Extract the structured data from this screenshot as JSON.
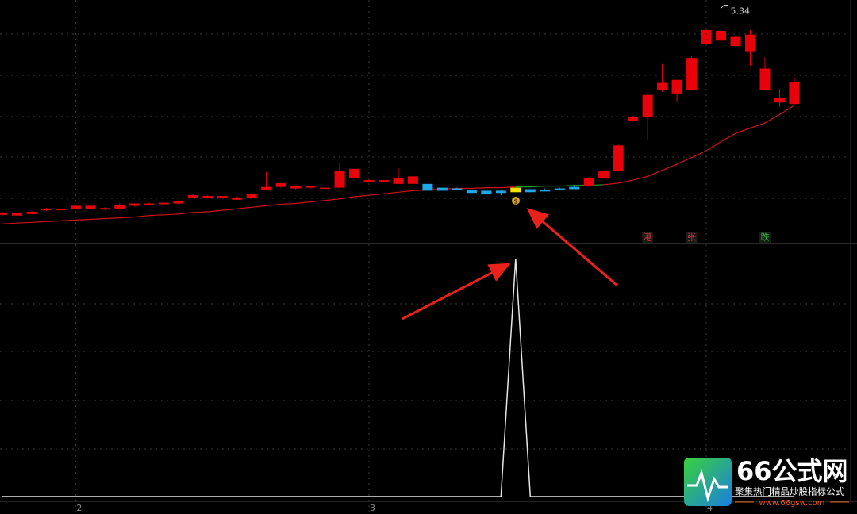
{
  "chart_data": [
    {
      "type": "candlestick",
      "open": [
        2.6,
        2.59,
        2.61,
        2.66,
        2.66,
        2.68,
        2.68,
        2.67,
        2.68,
        2.72,
        2.73,
        2.74,
        2.75,
        2.83,
        2.83,
        2.83,
        2.8,
        2.82,
        2.93,
        2.97,
        2.95,
        2.96,
        2.95,
        2.96,
        3.09,
        3.04,
        3.04,
        3.01,
        3.01,
        3.01,
        2.96,
        2.95,
        2.93,
        2.92,
        2.92,
        2.9,
        2.94,
        2.93,
        2.95,
        2.97,
        2.98,
        3.08,
        3.18,
        3.85,
        3.9,
        4.25,
        4.21,
        4.26,
        4.87,
        4.91,
        4.84,
        4.77,
        4.26,
        4.09,
        4.07
      ],
      "high": [
        2.64,
        2.64,
        2.65,
        2.69,
        2.68,
        2.73,
        2.72,
        2.7,
        2.75,
        2.75,
        2.76,
        2.76,
        2.79,
        2.88,
        2.86,
        2.85,
        2.84,
        2.89,
        3.17,
        3.02,
        2.98,
        2.98,
        2.98,
        3.29,
        3.21,
        3.09,
        3.06,
        3.22,
        3.11,
        3.01,
        2.96,
        2.96,
        2.93,
        2.92,
        2.93,
        2.96,
        2.94,
        2.95,
        2.96,
        2.98,
        3.1,
        3.18,
        3.53,
        3.91,
        4.2,
        4.6,
        4.39,
        4.7,
        5.07,
        5.34,
        4.97,
        5.05,
        4.69,
        4.27,
        4.42
      ],
      "low": [
        2.59,
        2.58,
        2.61,
        2.65,
        2.66,
        2.68,
        2.67,
        2.66,
        2.68,
        2.71,
        2.73,
        2.73,
        2.74,
        2.83,
        2.82,
        2.82,
        2.8,
        2.81,
        2.93,
        2.96,
        2.94,
        2.95,
        2.95,
        2.95,
        3.08,
        3.04,
        3.03,
        3.01,
        3.01,
        2.92,
        2.92,
        2.93,
        2.89,
        2.87,
        2.86,
        2.9,
        2.9,
        2.91,
        2.93,
        2.94,
        2.97,
        3.08,
        3.18,
        3.84,
        3.6,
        4.23,
        4.1,
        4.25,
        4.86,
        4.91,
        4.83,
        4.58,
        4.25,
        4.03,
        4.06
      ],
      "close": [
        2.62,
        2.63,
        2.64,
        2.68,
        2.68,
        2.72,
        2.72,
        2.69,
        2.73,
        2.75,
        2.75,
        2.76,
        2.78,
        2.86,
        2.85,
        2.85,
        2.83,
        2.88,
        2.97,
        3.02,
        2.98,
        2.98,
        2.96,
        3.18,
        3.21,
        3.06,
        3.06,
        3.09,
        3.11,
        2.92,
        2.92,
        2.93,
        2.89,
        2.87,
        2.89,
        2.96,
        2.9,
        2.91,
        2.93,
        2.94,
        3.09,
        3.18,
        3.52,
        3.9,
        4.19,
        4.35,
        4.39,
        4.68,
        5.05,
        5.04,
        4.96,
        4.99,
        4.54,
        4.15,
        4.36
      ],
      "candle_colors": [
        "#e8000b",
        "#e8000b",
        "#e8000b",
        "#e8000b",
        "#e8000b",
        "#e8000b",
        "#e8000b",
        "#e8000b",
        "#e8000b",
        "#e8000b",
        "#e8000b",
        "#e8000b",
        "#e8000b",
        "#e8000b",
        "#e8000b",
        "#e8000b",
        "#e8000b",
        "#e8000b",
        "#e8000b",
        "#e8000b",
        "#e8000b",
        "#e8000b",
        "#e8000b",
        "#e8000b",
        "#e8000b",
        "#e8000b",
        "#e8000b",
        "#e8000b",
        "#e8000b",
        "#1ea8e8",
        "#1ea8e8",
        "#1ea8e8",
        "#1ea8e8",
        "#1ea8e8",
        "#1ea8e8",
        "#f5e000",
        "#1ea8e8",
        "#1ea8e8",
        "#1ea8e8",
        "#1ea8e8",
        "#e8000b",
        "#e8000b",
        "#e8000b",
        "#e8000b",
        "#e8000b",
        "#e8000b",
        "#e8000b",
        "#e8000b",
        "#e8000b",
        "#e8000b",
        "#e8000b",
        "#e8000b",
        "#e8000b",
        "#e8000b",
        "#e8000b"
      ],
      "lines": [
        {
          "color": "#d0101a",
          "values": [
            2.48,
            2.49,
            2.5,
            2.51,
            2.52,
            2.53,
            2.54,
            2.55,
            2.56,
            2.57,
            2.59,
            2.6,
            2.61,
            2.63,
            2.64,
            2.66,
            2.68,
            2.7,
            2.72,
            2.74,
            2.75,
            2.77,
            2.79,
            2.81,
            2.84,
            2.86,
            2.88,
            2.9,
            2.92,
            2.93,
            2.94,
            2.95,
            2.95,
            2.96,
            2.96,
            2.97,
            null,
            null,
            null,
            null,
            null,
            3.0,
            3.02,
            3.06,
            3.11,
            3.19,
            3.27,
            3.36,
            3.45,
            3.57,
            3.68,
            3.75,
            3.82,
            3.93,
            4.05
          ]
        },
        {
          "color": "#1fa02a",
          "values": [
            null,
            null,
            null,
            null,
            null,
            null,
            null,
            null,
            null,
            null,
            null,
            null,
            null,
            null,
            null,
            null,
            null,
            null,
            null,
            null,
            null,
            null,
            null,
            null,
            null,
            null,
            null,
            null,
            null,
            null,
            null,
            null,
            null,
            null,
            null,
            2.97,
            2.97,
            2.98,
            2.98,
            2.99,
            2.99,
            3.0,
            null,
            null,
            null,
            null,
            null,
            null,
            null,
            null,
            null,
            null,
            null,
            null,
            null
          ]
        }
      ],
      "annotations": [
        {
          "text": "港",
          "at": 44,
          "color": "#e0303a"
        },
        {
          "text": "张",
          "at": 47,
          "color": "#e0303a"
        },
        {
          "text": "跌",
          "at": 52,
          "color": "#2fc23a"
        }
      ],
      "ylim": [
        2.24,
        5.45
      ]
    },
    {
      "type": "line",
      "categories": [
        null,
        null,
        null,
        null,
        null,
        "2",
        null,
        null,
        null,
        null,
        null,
        null,
        null,
        null,
        null,
        null,
        null,
        null,
        null,
        null,
        null,
        null,
        null,
        null,
        null,
        "3",
        null,
        null,
        null,
        null,
        null,
        null,
        null,
        null,
        null,
        null,
        null,
        null,
        null,
        null,
        null,
        null,
        null,
        null,
        null,
        null,
        null,
        null,
        "4",
        null,
        null,
        null,
        null,
        null,
        null
      ],
      "values": [
        0,
        0,
        0,
        0,
        0,
        0,
        0,
        0,
        0,
        0,
        0,
        0,
        0,
        0,
        0,
        0,
        0,
        0,
        0,
        0,
        0,
        0,
        0,
        0,
        0,
        0,
        0,
        0,
        0,
        0,
        0,
        0,
        0,
        0,
        0,
        1,
        0,
        0,
        0,
        0,
        0,
        0,
        0,
        0,
        0,
        0,
        0,
        0,
        0,
        0,
        0,
        0,
        0,
        0,
        0
      ],
      "color": "#e6e6e6",
      "ylim": [
        -0.02,
        1.06
      ]
    }
  ],
  "watermark": {
    "title": "66公式网",
    "slogan": "聚集热门精品炒股指标公式",
    "url": "www.66gsw.com"
  }
}
